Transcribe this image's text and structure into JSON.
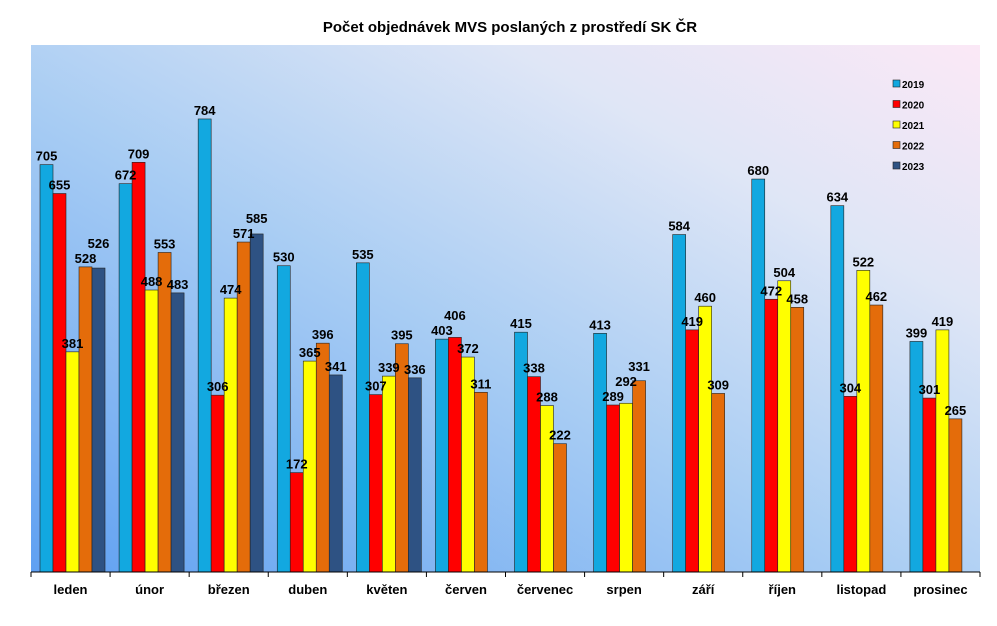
{
  "chart_data": {
    "type": "bar",
    "title": "Počet objednávek MVS poslaných z prostředí SK ČR",
    "xlabel": "",
    "ylabel": "",
    "ylim": [
      0,
      912
    ],
    "grid": false,
    "legend_position": "top-right",
    "categories": [
      "leden",
      "únor",
      "březen",
      "duben",
      "květen",
      "červen",
      "červenec",
      "srpen",
      "září",
      "říjen",
      "listopad",
      "prosinec"
    ],
    "series": [
      {
        "name": "2019",
        "color": "#12a8e0",
        "values": [
          705,
          672,
          784,
          530,
          535,
          403,
          415,
          413,
          584,
          680,
          634,
          399
        ]
      },
      {
        "name": "2020",
        "color": "#ff0000",
        "values": [
          655,
          709,
          306,
          172,
          307,
          406,
          338,
          289,
          419,
          472,
          304,
          301
        ]
      },
      {
        "name": "2021",
        "color": "#ffff00",
        "values": [
          381,
          488,
          474,
          365,
          339,
          372,
          288,
          292,
          460,
          504,
          522,
          419
        ]
      },
      {
        "name": "2022",
        "color": "#e46c0a",
        "values": [
          528,
          553,
          571,
          396,
          395,
          311,
          222,
          331,
          309,
          458,
          462,
          265
        ]
      },
      {
        "name": "2023",
        "color": "#2e5283",
        "values": [
          526,
          483,
          585,
          341,
          336,
          null,
          null,
          null,
          null,
          null,
          null,
          null
        ]
      }
    ]
  }
}
